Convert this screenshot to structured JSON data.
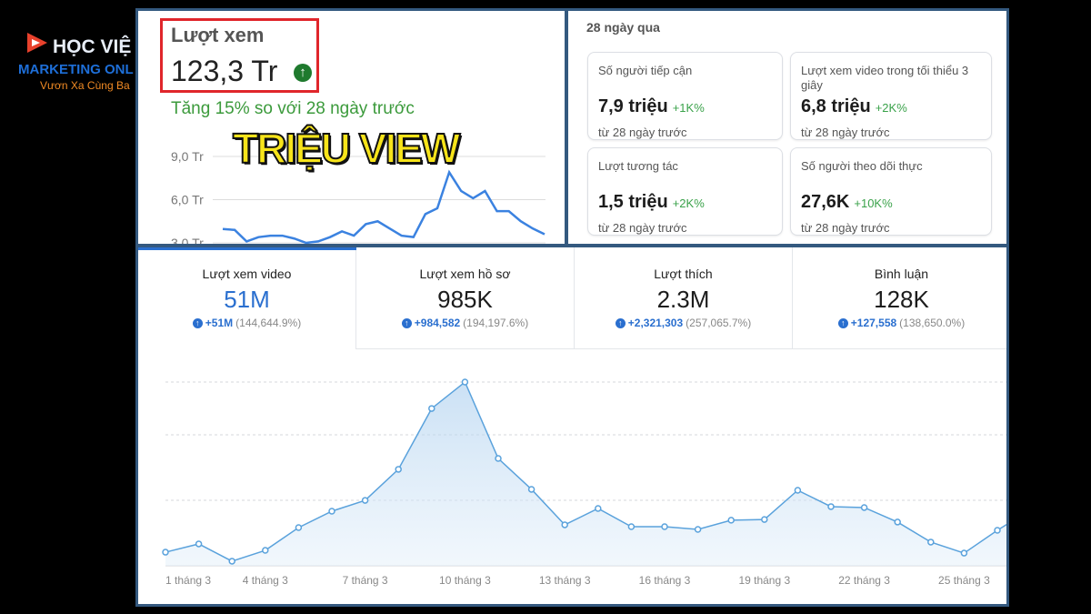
{
  "logo": {
    "line1": "HỌC VIỆ",
    "line2": "MARKETING ONL",
    "line3": "Vươn Xa Cùng Ba"
  },
  "views_panel": {
    "title": "Lượt xem",
    "total": "123,3 Tr",
    "comparison": "Tăng 15% so với 28 ngày trước",
    "overlay": "TRIỆU VIEW",
    "chart": {
      "type": "line",
      "color": "#3b82e0",
      "ylim": [
        3,
        9
      ],
      "yticks": [
        {
          "value": 9,
          "label": "9,0 Tr"
        },
        {
          "value": 6,
          "label": "6,0 Tr"
        },
        {
          "value": 3,
          "label": "3,0 Tr"
        }
      ],
      "values": [
        3.96,
        3.9,
        3.1,
        3.4,
        3.5,
        3.5,
        3.3,
        3.0,
        3.1,
        3.4,
        3.8,
        3.5,
        4.3,
        4.5,
        4.0,
        3.5,
        3.4,
        5.0,
        5.4,
        7.9,
        6.6,
        6.1,
        6.6,
        5.2,
        5.2,
        4.5,
        4.0,
        3.6
      ]
    }
  },
  "overview": {
    "period": "28 ngày qua",
    "cards": [
      {
        "label": "Số người tiếp cận",
        "value": "7,9 triệu",
        "change": "+1K%",
        "note": "từ 28 ngày trước"
      },
      {
        "label": "Lượt xem video trong tối thiểu 3 giây",
        "value": "6,8 triệu",
        "change": "+2K%",
        "note": "từ 28 ngày trước"
      },
      {
        "label": "Lượt tương tác",
        "value": "1,5 triệu",
        "change": "+2K%",
        "note": "từ 28 ngày trước"
      },
      {
        "label": "Số người theo dõi thực",
        "value": "27,6K",
        "change": "+10K%",
        "note": "từ 28 ngày trước"
      }
    ]
  },
  "metrics": {
    "tabs": [
      {
        "label": "Lượt xem video",
        "value": "51M",
        "change": "+51M",
        "percent": "(144,644.9%)"
      },
      {
        "label": "Lượt xem hồ sơ",
        "value": "985K",
        "change": "+984,582",
        "percent": "(194,197.6%)"
      },
      {
        "label": "Lượt thích",
        "value": "2.3M",
        "change": "+2,321,303",
        "percent": "(257,065.7%)"
      },
      {
        "label": "Bình luận",
        "value": "128K",
        "change": "+127,558",
        "percent": "(138,650.0%)"
      }
    ],
    "chart": {
      "type": "area",
      "color": "#5aa2dc",
      "ylim": [
        0,
        100
      ],
      "categories": [
        "1 tháng 3",
        null,
        null,
        "4 tháng 3",
        null,
        null,
        "7 tháng 3",
        null,
        null,
        "10 tháng 3",
        null,
        null,
        "13 tháng 3",
        null,
        null,
        "16 tháng 3",
        null,
        null,
        "19 tháng 3",
        null,
        null,
        "22 tháng 3",
        null,
        null,
        "25 tháng 3",
        null,
        null
      ],
      "values": [
        7.4,
        11.9,
        2.5,
        8.4,
        20.8,
        29.7,
        35.6,
        52.5,
        85.6,
        100,
        58.4,
        41.6,
        22.3,
        31.2,
        21.3,
        21.3,
        19.8,
        24.8,
        25.2,
        41.1,
        32.2,
        31.7,
        23.8,
        12.9,
        6.9,
        19.3,
        30.7
      ]
    }
  }
}
